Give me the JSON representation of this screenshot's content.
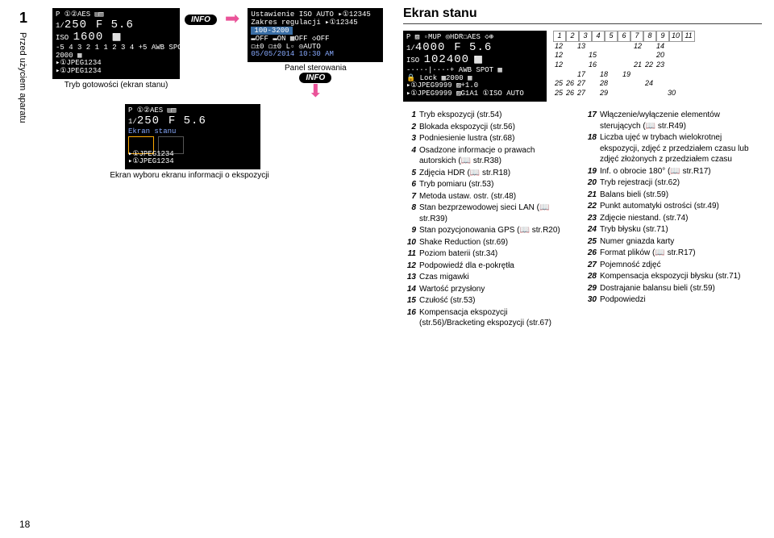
{
  "page_number_top": "1",
  "side_label": "Przed użyciem aparatu",
  "page_number_bottom": "18",
  "lcd1": {
    "l1": "P           ①②AES  ▤▥",
    "l2_a": "1/",
    "l2_b": "250",
    "l2_c": "F 5.6",
    "l3_a": "ISO",
    "l3_b": "1600",
    "l3_icon": "⬜",
    "l4": "-5 4 3 2 1  1 2 3 4 +5 AWB   SPOT",
    "l5": "           2000           ▦",
    "l6": "▸①JPEG1234",
    "l7": "▸①JPEG1234"
  },
  "caption1": "Tryb gotowości (ekran stanu)",
  "info": "INFO",
  "lcd2": {
    "l1": "Ustawienie ISO AUTO   ▸①12345",
    "l2": "Zakres regulacji      ▸①12345",
    "l3": "       100-3200",
    "l4": "▬OFF ▬ON  ▦OFF  ◇OFF",
    "l5": "◻±0  ◻±0  L▫   ◎AUTO",
    "l6": "05/05/2014 10:30 AM"
  },
  "caption2": "Panel sterowania",
  "lcd3": {
    "l1": "P           ①②AES  ▤▥",
    "l2_a": "1/",
    "l2_b": "250",
    "l2_c": "F 5.6",
    "l3": "         Ekran stanu",
    "l4": "▸①JPEG1234",
    "l5": "▸①JPEG1234"
  },
  "caption3": "Ekran wyboru ekranu informacji o ekspozycji",
  "status_title": "Ekran stanu",
  "lcd4": {
    "l1": "P ▨ ▫MUP ◎HDR☐AES ◇⊕",
    "l2_a": "1/",
    "l2_b": "4000",
    "l2_c": "F 5.6",
    "l3_a": "ISO",
    "l3_b": "102400",
    "l3_icon": "⬜",
    "l4": "-····|····+ AWB  SPOT  ▦",
    "l5": "🔒 Lock ▦2000       ▦",
    "l6": "▸①JPEG9999 ▨+1.0",
    "l7": "▸①JPEG9999 ▨G1A1    ①ISO AUTO"
  },
  "grid": {
    "r1": [
      "1",
      "2",
      "3",
      "4",
      "5",
      "6",
      "7",
      "8",
      "9",
      "10",
      "11"
    ],
    "rows": [
      [
        "12",
        "",
        "13",
        "",
        "",
        "",
        "",
        "12",
        "",
        "14",
        ""
      ],
      [
        "12",
        "",
        "",
        "15",
        "",
        "",
        "",
        "",
        "",
        "20",
        ""
      ],
      [
        "12",
        "",
        "",
        "16",
        "",
        "",
        "",
        "21",
        "22",
        "23",
        ""
      ],
      [
        "",
        "",
        "17",
        "",
        "18",
        "",
        "19",
        "",
        "",
        "",
        ""
      ],
      [
        "25",
        "26",
        "27",
        "",
        "28",
        "",
        "",
        "",
        "24",
        "",
        ""
      ],
      [
        "25",
        "26",
        "27",
        "",
        "29",
        "",
        "",
        "",
        "",
        "",
        "30"
      ]
    ]
  },
  "legend_left": [
    {
      "n": "1",
      "t": "Tryb ekspozycji (str.54)"
    },
    {
      "n": "2",
      "t": "Blokada ekspozycji (str.56)"
    },
    {
      "n": "3",
      "t": "Podniesienie lustra (str.68)"
    },
    {
      "n": "4",
      "t": "Osadzone informacje o prawach autorskich (📖 str.R38)"
    },
    {
      "n": "5",
      "t": "Zdjęcia HDR (📖 str.R18)"
    },
    {
      "n": "6",
      "t": "Tryb pomiaru (str.53)"
    },
    {
      "n": "7",
      "t": "Metoda ustaw. ostr. (str.48)"
    },
    {
      "n": "8",
      "t": "Stan bezprzewodowej sieci LAN (📖 str.R39)"
    },
    {
      "n": "9",
      "t": "Stan pozycjonowania GPS (📖 str.R20)"
    },
    {
      "n": "10",
      "t": "Shake Reduction (str.69)"
    },
    {
      "n": "11",
      "t": "Poziom baterii (str.34)"
    },
    {
      "n": "12",
      "t": "Podpowiedź dla e-pokrętła"
    },
    {
      "n": "13",
      "t": "Czas migawki"
    },
    {
      "n": "14",
      "t": "Wartość przysłony"
    },
    {
      "n": "15",
      "t": "Czułość (str.53)"
    },
    {
      "n": "16",
      "t": "Kompensacja ekspozycji (str.56)/Bracketing ekspozycji (str.67)"
    }
  ],
  "legend_right": [
    {
      "n": "17",
      "t": "Włączenie/wyłączenie elementów sterujących (📖 str.R49)"
    },
    {
      "n": "18",
      "t": "Liczba ujęć w trybach wielokrotnej ekspozycji, zdjęć z przedziałem czasu lub zdjęć złożonych z przedziałem czasu"
    },
    {
      "n": "19",
      "t": "Inf. o obrocie 180° (📖 str.R17)"
    },
    {
      "n": "20",
      "t": "Tryb rejestracji (str.62)"
    },
    {
      "n": "21",
      "t": "Balans bieli (str.59)"
    },
    {
      "n": "22",
      "t": "Punkt automatyki ostrości (str.49)"
    },
    {
      "n": "23",
      "t": "Zdjęcie niestand. (str.74)"
    },
    {
      "n": "24",
      "t": "Tryb błysku (str.71)"
    },
    {
      "n": "25",
      "t": "Numer gniazda karty"
    },
    {
      "n": "26",
      "t": "Format plików (📖 str.R17)"
    },
    {
      "n": "27",
      "t": "Pojemność zdjęć"
    },
    {
      "n": "28",
      "t": "Kompensacja ekspozycji błysku (str.71)"
    },
    {
      "n": "29",
      "t": "Dostrajanie balansu bieli (str.59)"
    },
    {
      "n": "30",
      "t": "Podpowiedzi"
    }
  ]
}
